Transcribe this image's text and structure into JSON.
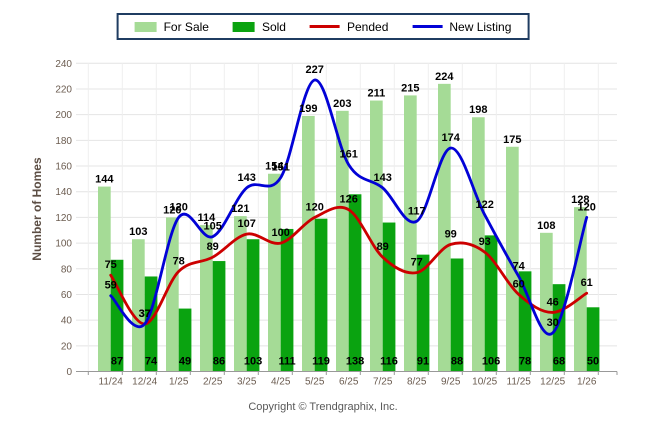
{
  "legend": {
    "items": [
      {
        "label": "For Sale",
        "swatch": "box",
        "color": "#A5DB96"
      },
      {
        "label": "Sold",
        "swatch": "box",
        "color": "#0AA310"
      },
      {
        "label": "Pended",
        "swatch": "line",
        "color": "#CC0000"
      },
      {
        "label": "New Listing",
        "swatch": "line",
        "color": "#0202D6"
      }
    ]
  },
  "chart_data": {
    "type": "bar+line",
    "categories": [
      "11/24",
      "12/24",
      "1/25",
      "2/25",
      "3/25",
      "4/25",
      "5/25",
      "6/25",
      "7/25",
      "8/25",
      "9/25",
      "10/25",
      "11/25",
      "12/25",
      "1/26"
    ],
    "series": [
      {
        "name": "For Sale",
        "type": "bar",
        "color": "#A5DB96",
        "values": [
          144,
          103,
          120,
          114,
          121,
          154,
          199,
          203,
          211,
          215,
          224,
          198,
          175,
          108,
          128
        ]
      },
      {
        "name": "Sold",
        "type": "bar",
        "color": "#0AA310",
        "values": [
          87,
          74,
          49,
          86,
          103,
          111,
          119,
          138,
          116,
          91,
          88,
          106,
          78,
          68,
          50
        ]
      },
      {
        "name": "Pended",
        "type": "line",
        "color": "#CC0000",
        "values": [
          75,
          37,
          78,
          89,
          107,
          100,
          120,
          126,
          89,
          77,
          99,
          93,
          60,
          46,
          61
        ]
      },
      {
        "name": "New Listing",
        "type": "line",
        "color": "#0202D6",
        "values": [
          59,
          37,
          120,
          105,
          143,
          151,
          227,
          161,
          143,
          117,
          174,
          122,
          74,
          30,
          120
        ]
      }
    ],
    "ylabel": "Number of Homes",
    "ylim": [
      0,
      240
    ],
    "ytick_step": 20,
    "grid": true,
    "legend_position": "top-center"
  },
  "footer": {
    "copyright": "Copyright © Trendgraphix, Inc."
  },
  "colors": {
    "grid_horizontal": "#E4E4E4",
    "grid_vertical": "#EFEFEF",
    "axis": "#999999",
    "tick_text": "#6B5C50",
    "data_label": "#000000",
    "legend_border": "#1F3C61"
  }
}
